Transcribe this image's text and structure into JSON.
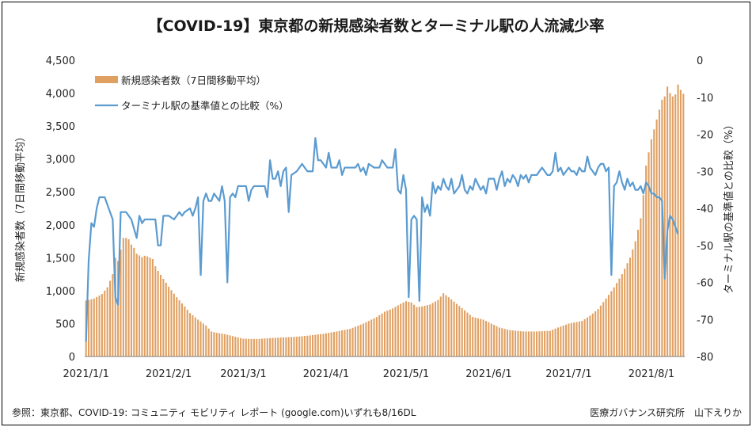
{
  "title": "【COVID-19】東京都の新規感染者数とターミナル駅の人流減少率",
  "footer": {
    "source": "参照：東京都、COVID-19: コミュニティ モビリティ レポート (google.com)いずれも8/16DL",
    "credit": "医療ガバナンス研究所　山下えりか"
  },
  "colors": {
    "bars": "#e0a062",
    "line": "#5b9bd0"
  },
  "chart_data": {
    "type": "bar+line",
    "xlabel": "",
    "ylabel": "新規感染者数（7日間移動平均）",
    "y2label": "ターミナル駅の基準値との比較（%）",
    "ylim": [
      0,
      4500
    ],
    "y2lim": [
      -80,
      0
    ],
    "yticks": [
      "0",
      "500",
      "1,000",
      "1,500",
      "2,000",
      "2,500",
      "3,000",
      "3,500",
      "4,000",
      "4,500"
    ],
    "y2ticks": [
      "0",
      "-10",
      "-20",
      "-30",
      "-40",
      "-50",
      "-60",
      "-70",
      "-80"
    ],
    "xticks": [
      {
        "label": "2021/1/1",
        "day": 1
      },
      {
        "label": "2021/2/1",
        "day": 32
      },
      {
        "label": "2021/3/1",
        "day": 60
      },
      {
        "label": "2021/4/1",
        "day": 91
      },
      {
        "label": "2021/5/1",
        "day": 121
      },
      {
        "label": "2021/6/1",
        "day": 152
      },
      {
        "label": "2021/7/1",
        "day": 182
      },
      {
        "label": "2021/8/1",
        "day": 213
      }
    ],
    "n_days": 225,
    "grid": false,
    "legend_position": "top-left",
    "series": [
      {
        "name": "新規感染者数（7日間移動平均）",
        "type": "bar",
        "axis": "left",
        "keypoints": [
          [
            1,
            850
          ],
          [
            4,
            880
          ],
          [
            7,
            950
          ],
          [
            9,
            1050
          ],
          [
            11,
            1250
          ],
          [
            12,
            1500
          ],
          [
            13,
            1450
          ],
          [
            15,
            1800
          ],
          [
            16,
            1800
          ],
          [
            17,
            1780
          ],
          [
            18,
            1700
          ],
          [
            19,
            1650
          ],
          [
            20,
            1560
          ],
          [
            22,
            1510
          ],
          [
            23,
            1530
          ],
          [
            24,
            1520
          ],
          [
            25,
            1500
          ],
          [
            26,
            1480
          ],
          [
            27,
            1370
          ],
          [
            28,
            1300
          ],
          [
            30,
            1180
          ],
          [
            32,
            1060
          ],
          [
            35,
            900
          ],
          [
            38,
            760
          ],
          [
            40,
            660
          ],
          [
            43,
            560
          ],
          [
            46,
            470
          ],
          [
            48,
            380
          ],
          [
            50,
            360
          ],
          [
            53,
            340
          ],
          [
            57,
            300
          ],
          [
            60,
            270
          ],
          [
            65,
            265
          ],
          [
            70,
            280
          ],
          [
            75,
            290
          ],
          [
            80,
            300
          ],
          [
            85,
            320
          ],
          [
            90,
            345
          ],
          [
            95,
            380
          ],
          [
            100,
            420
          ],
          [
            105,
            500
          ],
          [
            110,
            600
          ],
          [
            113,
            680
          ],
          [
            116,
            730
          ],
          [
            119,
            800
          ],
          [
            121,
            840
          ],
          [
            123,
            820
          ],
          [
            125,
            750
          ],
          [
            127,
            760
          ],
          [
            130,
            790
          ],
          [
            133,
            860
          ],
          [
            135,
            960
          ],
          [
            137,
            900
          ],
          [
            140,
            800
          ],
          [
            143,
            700
          ],
          [
            146,
            600
          ],
          [
            150,
            560
          ],
          [
            153,
            500
          ],
          [
            156,
            440
          ],
          [
            160,
            400
          ],
          [
            165,
            380
          ],
          [
            170,
            380
          ],
          [
            175,
            390
          ],
          [
            178,
            440
          ],
          [
            182,
            500
          ],
          [
            187,
            540
          ],
          [
            190,
            620
          ],
          [
            193,
            720
          ],
          [
            196,
            880
          ],
          [
            199,
            1050
          ],
          [
            202,
            1250
          ],
          [
            205,
            1500
          ],
          [
            207,
            1750
          ],
          [
            209,
            2100
          ],
          [
            210,
            2450
          ],
          [
            211,
            2900
          ],
          [
            212,
            3100
          ],
          [
            213,
            3300
          ],
          [
            214,
            3450
          ],
          [
            215,
            3600
          ],
          [
            216,
            3750
          ],
          [
            217,
            3900
          ],
          [
            218,
            3950
          ],
          [
            219,
            4100
          ],
          [
            220,
            4000
          ],
          [
            221,
            3950
          ],
          [
            222,
            3980
          ],
          [
            223,
            4130
          ],
          [
            224,
            4050
          ],
          [
            225,
            3990
          ]
        ]
      },
      {
        "name": "ターミナル駅の基準値との比較（%）",
        "type": "line",
        "axis": "right",
        "keypoints": [
          [
            1,
            -76
          ],
          [
            2,
            -54
          ],
          [
            3,
            -44
          ],
          [
            4,
            -45
          ],
          [
            5,
            -40
          ],
          [
            6,
            -37
          ],
          [
            8,
            -37
          ],
          [
            10,
            -41
          ],
          [
            11,
            -43
          ],
          [
            12,
            -64
          ],
          [
            13,
            -66
          ],
          [
            14,
            -41
          ],
          [
            16,
            -41
          ],
          [
            18,
            -43
          ],
          [
            20,
            -48
          ],
          [
            21,
            -42
          ],
          [
            22,
            -44
          ],
          [
            23,
            -43
          ],
          [
            25,
            -43
          ],
          [
            27,
            -43
          ],
          [
            28,
            -50
          ],
          [
            29,
            -50
          ],
          [
            30,
            -42
          ],
          [
            32,
            -42
          ],
          [
            34,
            -43
          ],
          [
            36,
            -41
          ],
          [
            37,
            -42
          ],
          [
            38,
            -41
          ],
          [
            40,
            -40
          ],
          [
            41,
            -42
          ],
          [
            42,
            -40
          ],
          [
            43,
            -37
          ],
          [
            44,
            -58
          ],
          [
            45,
            -38
          ],
          [
            46,
            -36
          ],
          [
            47,
            -38
          ],
          [
            48,
            -38
          ],
          [
            49,
            -36
          ],
          [
            51,
            -38
          ],
          [
            52,
            -34
          ],
          [
            53,
            -38
          ],
          [
            54,
            -60
          ],
          [
            55,
            -37
          ],
          [
            56,
            -36
          ],
          [
            57,
            -37
          ],
          [
            58,
            -34
          ],
          [
            60,
            -34
          ],
          [
            61,
            -34
          ],
          [
            62,
            -38
          ],
          [
            63,
            -35
          ],
          [
            64,
            -34
          ],
          [
            66,
            -34
          ],
          [
            68,
            -34
          ],
          [
            69,
            -37
          ],
          [
            70,
            -27
          ],
          [
            71,
            -32
          ],
          [
            72,
            -32
          ],
          [
            73,
            -30
          ],
          [
            74,
            -34
          ],
          [
            75,
            -30
          ],
          [
            76,
            -29
          ],
          [
            77,
            -41
          ],
          [
            78,
            -31
          ],
          [
            80,
            -30
          ],
          [
            82,
            -28
          ],
          [
            84,
            -30
          ],
          [
            86,
            -30
          ],
          [
            87,
            -21
          ],
          [
            88,
            -27
          ],
          [
            89,
            -27
          ],
          [
            90,
            -28
          ],
          [
            91,
            -29
          ],
          [
            92,
            -25
          ],
          [
            93,
            -29
          ],
          [
            95,
            -29
          ],
          [
            96,
            -27
          ],
          [
            97,
            -31
          ],
          [
            98,
            -29
          ],
          [
            100,
            -29
          ],
          [
            102,
            -29
          ],
          [
            103,
            -28
          ],
          [
            104,
            -30
          ],
          [
            105,
            -29
          ],
          [
            106,
            -31
          ],
          [
            107,
            -28
          ],
          [
            109,
            -29
          ],
          [
            111,
            -29
          ],
          [
            112,
            -27
          ],
          [
            114,
            -29
          ],
          [
            116,
            -29
          ],
          [
            117,
            -24
          ],
          [
            118,
            -35
          ],
          [
            119,
            -36
          ],
          [
            120,
            -31
          ],
          [
            121,
            -35
          ],
          [
            122,
            -64
          ],
          [
            123,
            -43
          ],
          [
            124,
            -42
          ],
          [
            125,
            -43
          ],
          [
            126,
            -65
          ],
          [
            127,
            -37
          ],
          [
            128,
            -41
          ],
          [
            129,
            -39
          ],
          [
            130,
            -42
          ],
          [
            131,
            -33
          ],
          [
            132,
            -36
          ],
          [
            133,
            -34
          ],
          [
            134,
            -35
          ],
          [
            135,
            -32
          ],
          [
            136,
            -34
          ],
          [
            137,
            -35
          ],
          [
            138,
            -32
          ],
          [
            139,
            -36
          ],
          [
            140,
            -35
          ],
          [
            141,
            -34
          ],
          [
            142,
            -31
          ],
          [
            143,
            -35
          ],
          [
            144,
            -36
          ],
          [
            145,
            -34
          ],
          [
            146,
            -35
          ],
          [
            147,
            -32
          ],
          [
            149,
            -35
          ],
          [
            150,
            -34
          ],
          [
            151,
            -36
          ],
          [
            152,
            -32
          ],
          [
            154,
            -32
          ],
          [
            155,
            -35
          ],
          [
            156,
            -32
          ],
          [
            157,
            -30
          ],
          [
            158,
            -34
          ],
          [
            159,
            -32
          ],
          [
            160,
            -33
          ],
          [
            161,
            -31
          ],
          [
            162,
            -32
          ],
          [
            163,
            -34
          ],
          [
            164,
            -31
          ],
          [
            165,
            -32
          ],
          [
            166,
            -31
          ],
          [
            167,
            -33
          ],
          [
            168,
            -31
          ],
          [
            170,
            -31
          ],
          [
            172,
            -29
          ],
          [
            173,
            -30
          ],
          [
            174,
            -31
          ],
          [
            175,
            -31
          ],
          [
            176,
            -30
          ],
          [
            177,
            -25
          ],
          [
            178,
            -30
          ],
          [
            179,
            -29
          ],
          [
            180,
            -31
          ],
          [
            181,
            -30
          ],
          [
            182,
            -29
          ],
          [
            183,
            -30
          ],
          [
            184,
            -30
          ],
          [
            185,
            -31
          ],
          [
            186,
            -29
          ],
          [
            187,
            -30
          ],
          [
            188,
            -30
          ],
          [
            189,
            -26
          ],
          [
            190,
            -29
          ],
          [
            191,
            -30
          ],
          [
            192,
            -31
          ],
          [
            193,
            -29
          ],
          [
            194,
            -28
          ],
          [
            195,
            -28
          ],
          [
            196,
            -30
          ],
          [
            197,
            -29
          ],
          [
            198,
            -58
          ],
          [
            199,
            -34
          ],
          [
            200,
            -33
          ],
          [
            201,
            -30
          ],
          [
            202,
            -33
          ],
          [
            203,
            -35
          ],
          [
            204,
            -32
          ],
          [
            205,
            -34
          ],
          [
            206,
            -33
          ],
          [
            207,
            -35
          ],
          [
            208,
            -35
          ],
          [
            209,
            -34
          ],
          [
            210,
            -36
          ],
          [
            211,
            -33
          ],
          [
            212,
            -34
          ],
          [
            213,
            -36
          ],
          [
            214,
            -36
          ],
          [
            215,
            -37
          ],
          [
            216,
            -37
          ],
          [
            217,
            -38
          ],
          [
            218,
            -59
          ],
          [
            219,
            -46
          ],
          [
            220,
            -42
          ],
          [
            221,
            -43
          ],
          [
            222,
            -45
          ],
          [
            223,
            -47
          ]
        ]
      }
    ]
  }
}
